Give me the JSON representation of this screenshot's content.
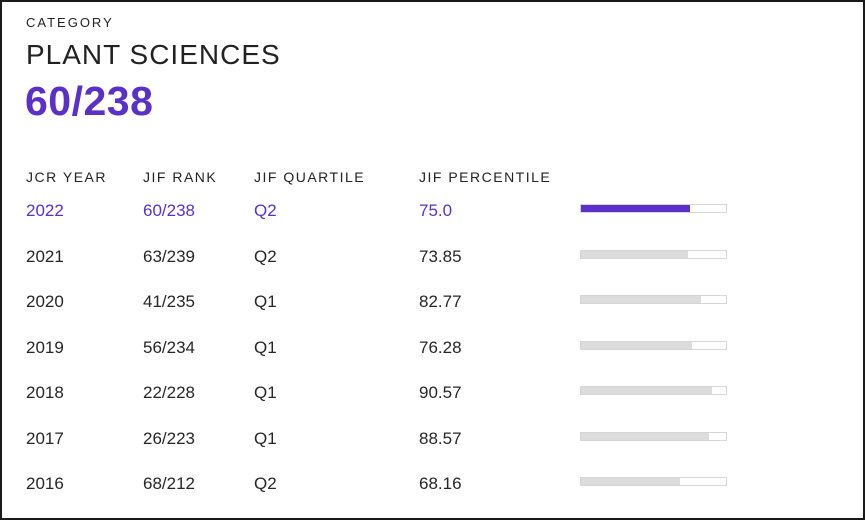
{
  "category": {
    "label": "CATEGORY",
    "name": "PLANT SCIENCES",
    "rank": "60/238"
  },
  "columns": {
    "year": "JCR YEAR",
    "rank": "JIF RANK",
    "quartile": "JIF QUARTILE",
    "percentile": "JIF PERCENTILE"
  },
  "colors": {
    "accent": "#5b2fc9",
    "bar_inactive": "#dcdcdc"
  },
  "rows": [
    {
      "year": "2022",
      "rank": "60/238",
      "quartile": "Q2",
      "percentile": "75.0",
      "active": true
    },
    {
      "year": "2021",
      "rank": "63/239",
      "quartile": "Q2",
      "percentile": "73.85",
      "active": false
    },
    {
      "year": "2020",
      "rank": "41/235",
      "quartile": "Q1",
      "percentile": "82.77",
      "active": false
    },
    {
      "year": "2019",
      "rank": "56/234",
      "quartile": "Q1",
      "percentile": "76.28",
      "active": false
    },
    {
      "year": "2018",
      "rank": "22/228",
      "quartile": "Q1",
      "percentile": "90.57",
      "active": false
    },
    {
      "year": "2017",
      "rank": "26/223",
      "quartile": "Q1",
      "percentile": "88.57",
      "active": false
    },
    {
      "year": "2016",
      "rank": "68/212",
      "quartile": "Q2",
      "percentile": "68.16",
      "active": false
    }
  ]
}
